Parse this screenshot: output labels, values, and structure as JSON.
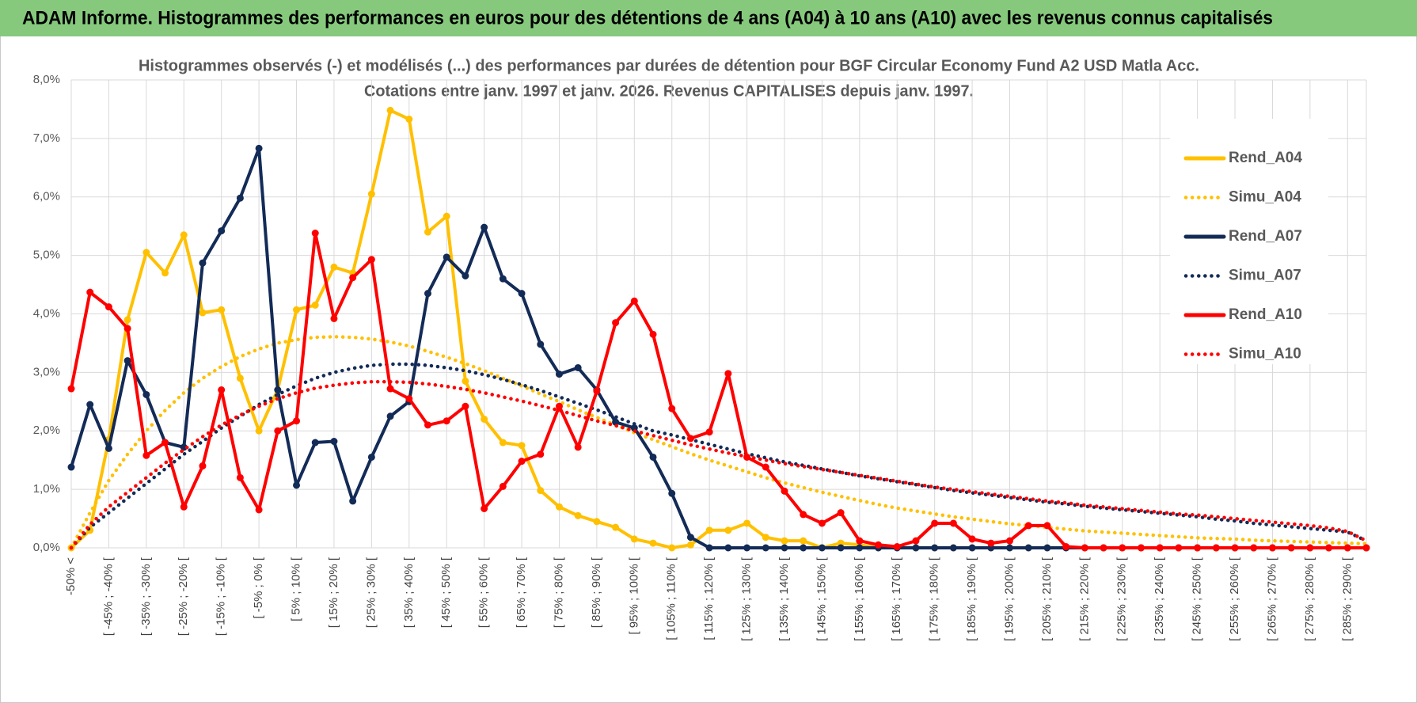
{
  "header": {
    "title": "ADAM Informe. Histogrammes des performances en euros pour des détentions de 4 ans (A04) à 10 ans (A10) avec les revenus connus capitalisés"
  },
  "chart_data": {
    "type": "line",
    "title": "Histogrammes observés (-) et modélisés (...) des performances par durées de détention pour BGF Circular Economy Fund A2 USD Matla Acc.",
    "subtitle": "Cotations entre janv. 1997 et janv. 2026. Revenus CAPITALISES depuis janv. 1997.",
    "categories": [
      "-50% <",
      null,
      "[ -45% ; -40% [",
      null,
      "[ -35% ; -30% [",
      null,
      "[ -25% ; -20% [",
      null,
      "[ -15% ; -10% [",
      null,
      "[ -5% ; 0% [",
      null,
      "[ 5% ; 10% [",
      null,
      "[ 15% ; 20% [",
      null,
      "[ 25% ; 30% [",
      null,
      "[ 35% ; 40% [",
      null,
      "[ 45% ; 50% [",
      null,
      "[ 55% ; 60% [",
      null,
      "[ 65% ; 70% [",
      null,
      "[ 75% ; 80% [",
      null,
      "[ 85% ; 90% [",
      null,
      "[ 95% ; 100% [",
      null,
      "[ 105% ; 110% [",
      null,
      "[ 115% ; 120% [",
      null,
      "[ 125% ; 130% [",
      null,
      "[ 135% ; 140% [",
      null,
      "[ 145% ; 150% [",
      null,
      "[ 155% ; 160% [",
      null,
      "[ 165% ; 170% [",
      null,
      "[ 175% ; 180% [",
      null,
      "[ 185% ; 190% [",
      null,
      "[ 195% ; 200% [",
      null,
      "[ 205% ; 210% [",
      null,
      "[ 215% ; 220% [",
      null,
      "[ 225% ; 230% [",
      null,
      "[ 235% ; 240% [",
      null,
      "[ 245% ; 250% [",
      null,
      "[ 255% ; 260% [",
      null,
      "[ 265% ; 270% [",
      null,
      "[ 275% ; 280% [",
      null,
      "[ 285% ; 290% [",
      null
    ],
    "series": [
      {
        "name": "Rend_A04",
        "color": "#FFC000",
        "line_style": "solid",
        "values": [
          0,
          0.3,
          1.85,
          3.9,
          5.05,
          4.7,
          5.35,
          4.02,
          4.07,
          2.9,
          2.0,
          2.7,
          4.07,
          4.15,
          4.8,
          4.7,
          6.05,
          7.48,
          7.33,
          5.4,
          5.67,
          2.85,
          2.2,
          1.8,
          1.75,
          0.98,
          0.7,
          0.55,
          0.45,
          0.35,
          0.15,
          0.08,
          0,
          0.05,
          0.3,
          0.3,
          0.42,
          0.18,
          0.12,
          0.12,
          0,
          0.08,
          0.05,
          0,
          0,
          0,
          0,
          0,
          0,
          0,
          0,
          0,
          0,
          0,
          0,
          0,
          0,
          0,
          0,
          0,
          0,
          0,
          0,
          0,
          0,
          0,
          0,
          0,
          0,
          0
        ]
      },
      {
        "name": "Simu_A04",
        "color": "#FFC000",
        "line_style": "dotted",
        "values": [
          0,
          0.6,
          1.15,
          1.6,
          2.0,
          2.35,
          2.65,
          2.9,
          3.1,
          3.27,
          3.4,
          3.5,
          3.56,
          3.6,
          3.61,
          3.6,
          3.57,
          3.52,
          3.45,
          3.36,
          3.26,
          3.15,
          3.03,
          2.9,
          2.77,
          2.63,
          2.5,
          2.36,
          2.23,
          2.1,
          1.97,
          1.85,
          1.73,
          1.61,
          1.5,
          1.4,
          1.3,
          1.2,
          1.11,
          1.03,
          0.95,
          0.88,
          0.81,
          0.74,
          0.68,
          0.63,
          0.58,
          0.53,
          0.49,
          0.45,
          0.41,
          0.38,
          0.35,
          0.32,
          0.29,
          0.27,
          0.25,
          0.23,
          0.21,
          0.19,
          0.17,
          0.16,
          0.15,
          0.13,
          0.12,
          0.11,
          0.1,
          0.09,
          0.08,
          0.07
        ]
      },
      {
        "name": "Rend_A07",
        "color": "#132B57",
        "line_style": "solid",
        "values": [
          1.38,
          2.45,
          1.7,
          3.2,
          2.62,
          1.8,
          1.72,
          4.87,
          5.42,
          5.98,
          6.83,
          2.7,
          1.07,
          1.8,
          1.82,
          0.8,
          1.55,
          2.25,
          2.5,
          4.35,
          4.97,
          4.65,
          5.48,
          4.6,
          4.35,
          3.48,
          2.97,
          3.08,
          2.7,
          2.15,
          2.05,
          1.55,
          0.93,
          0.18,
          0,
          0,
          0,
          0,
          0,
          0,
          0,
          0,
          0,
          0,
          0,
          0,
          0,
          0,
          0,
          0,
          0,
          0,
          0,
          0,
          0,
          0,
          0,
          0,
          0,
          0,
          0,
          0,
          0,
          0,
          0,
          0,
          0,
          0,
          0,
          0
        ]
      },
      {
        "name": "Simu_A07",
        "color": "#132B57",
        "line_style": "dotted",
        "values": [
          0,
          0.35,
          0.6,
          0.85,
          1.1,
          1.35,
          1.6,
          1.82,
          2.05,
          2.25,
          2.45,
          2.62,
          2.77,
          2.9,
          3.0,
          3.07,
          3.12,
          3.14,
          3.14,
          3.12,
          3.08,
          3.03,
          2.96,
          2.88,
          2.79,
          2.69,
          2.58,
          2.47,
          2.36,
          2.24,
          2.12,
          2.0,
          1.93,
          1.85,
          1.77,
          1.69,
          1.61,
          1.54,
          1.47,
          1.41,
          1.35,
          1.29,
          1.23,
          1.18,
          1.13,
          1.08,
          1.03,
          0.98,
          0.94,
          0.9,
          0.86,
          0.82,
          0.78,
          0.75,
          0.71,
          0.68,
          0.65,
          0.62,
          0.59,
          0.56,
          0.53,
          0.49,
          0.46,
          0.42,
          0.39,
          0.36,
          0.33,
          0.3,
          0.27,
          0.12
        ]
      },
      {
        "name": "Rend_A10",
        "color": "#FF0000",
        "line_style": "solid",
        "values": [
          2.72,
          4.37,
          4.12,
          3.75,
          1.58,
          1.8,
          0.7,
          1.4,
          2.7,
          1.2,
          0.65,
          2.0,
          2.17,
          5.38,
          3.92,
          4.62,
          4.93,
          2.72,
          2.55,
          2.1,
          2.17,
          2.42,
          0.67,
          1.05,
          1.48,
          1.6,
          2.42,
          1.72,
          2.68,
          3.85,
          4.22,
          3.65,
          2.38,
          1.87,
          1.98,
          2.98,
          1.55,
          1.38,
          0.97,
          0.57,
          0.42,
          0.6,
          0.12,
          0.05,
          0.02,
          0.12,
          0.42,
          0.42,
          0.15,
          0.08,
          0.12,
          0.38,
          0.38,
          0.02,
          0,
          0,
          0,
          0,
          0,
          0,
          0,
          0,
          0,
          0,
          0,
          0,
          0,
          0,
          0,
          0
        ]
      },
      {
        "name": "Simu_A10",
        "color": "#FF0000",
        "line_style": "dotted",
        "values": [
          0,
          0.4,
          0.7,
          0.95,
          1.2,
          1.45,
          1.68,
          1.9,
          2.1,
          2.27,
          2.42,
          2.55,
          2.65,
          2.73,
          2.78,
          2.82,
          2.84,
          2.84,
          2.83,
          2.8,
          2.76,
          2.71,
          2.65,
          2.58,
          2.51,
          2.43,
          2.35,
          2.26,
          2.17,
          2.09,
          2.0,
          1.92,
          1.84,
          1.76,
          1.69,
          1.62,
          1.56,
          1.5,
          1.44,
          1.39,
          1.34,
          1.29,
          1.24,
          1.19,
          1.14,
          1.09,
          1.04,
          1.0,
          0.96,
          0.92,
          0.88,
          0.84,
          0.8,
          0.77,
          0.73,
          0.7,
          0.67,
          0.64,
          0.61,
          0.58,
          0.56,
          0.53,
          0.5,
          0.47,
          0.44,
          0.41,
          0.38,
          0.34,
          0.28,
          0.12
        ]
      }
    ],
    "ylim": [
      0,
      8
    ],
    "yticks": [
      {
        "value": 0,
        "label": "0,0%"
      },
      {
        "value": 1,
        "label": "1,0%"
      },
      {
        "value": 2,
        "label": "2,0%"
      },
      {
        "value": 3,
        "label": "3,0%"
      },
      {
        "value": 4,
        "label": "4,0%"
      },
      {
        "value": 5,
        "label": "5,0%"
      },
      {
        "value": 6,
        "label": "6,0%"
      },
      {
        "value": 7,
        "label": "7,0%"
      },
      {
        "value": 8,
        "label": "8,0%"
      }
    ],
    "grid": true,
    "legend": "upper right"
  }
}
